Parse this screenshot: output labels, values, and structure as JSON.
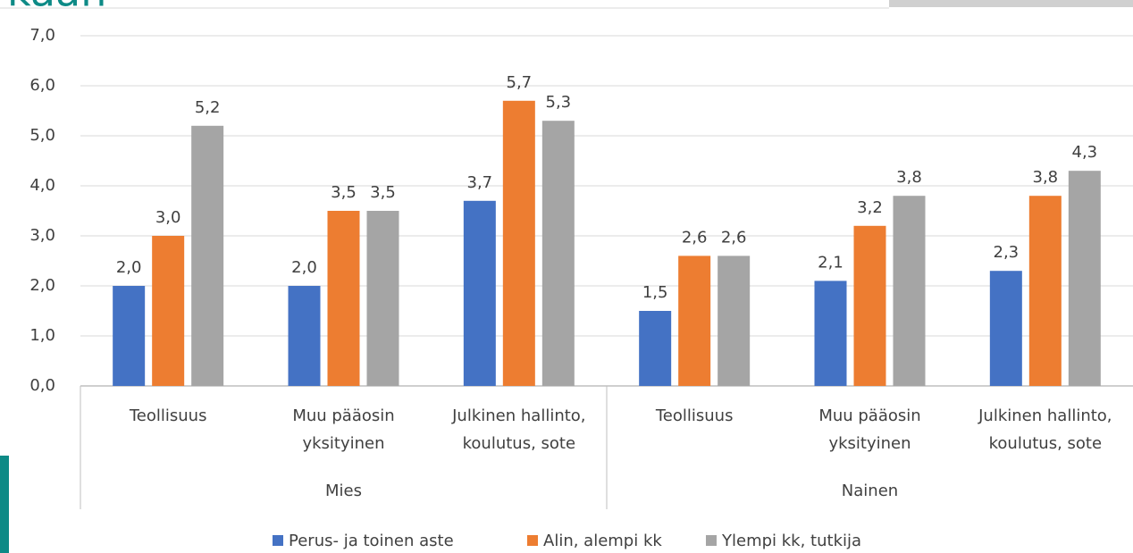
{
  "slide": {
    "title_fragment": "kaan"
  },
  "chart_data": {
    "type": "bar",
    "categories": [
      [
        "Teollisuus"
      ],
      [
        "Muu pääosin",
        "yksityinen"
      ],
      [
        "Julkinen hallinto,",
        "koulutus, sote"
      ],
      [
        "Teollisuus"
      ],
      [
        "Muu pääosin",
        "yksityinen"
      ],
      [
        "Julkinen hallinto,",
        "koulutus, sote"
      ]
    ],
    "groups": [
      {
        "name": "Mies",
        "span": 3
      },
      {
        "name": "Nainen",
        "span": 3
      }
    ],
    "series": [
      {
        "name": "Perus- ja toinen aste",
        "color": "#4472c4",
        "values": [
          2.0,
          2.0,
          3.7,
          1.5,
          2.1,
          2.3
        ],
        "value_labels": [
          "2,0",
          "2,0",
          "3,7",
          "1,5",
          "2,1",
          "2,3"
        ]
      },
      {
        "name": "Alin, alempi kk",
        "color": "#ed7d31",
        "values": [
          3.0,
          3.5,
          5.7,
          2.6,
          3.2,
          3.8
        ],
        "value_labels": [
          "3,0",
          "3,5",
          "5,7",
          "2,6",
          "3,2",
          "3,8"
        ]
      },
      {
        "name": "Ylempi kk, tutkija",
        "color": "#a5a5a5",
        "values": [
          5.2,
          3.5,
          5.3,
          2.6,
          3.8,
          4.3
        ],
        "value_labels": [
          "5,2",
          "3,5",
          "5,3",
          "2,6",
          "3,8",
          "4,3"
        ]
      }
    ],
    "ylim": [
      0,
      7
    ],
    "yticks": [
      {
        "value": 0,
        "label": "0,0"
      },
      {
        "value": 1,
        "label": "1,0"
      },
      {
        "value": 2,
        "label": "2,0"
      },
      {
        "value": 3,
        "label": "3,0"
      },
      {
        "value": 4,
        "label": "4,0"
      },
      {
        "value": 5,
        "label": "5,0"
      },
      {
        "value": 6,
        "label": "6,0"
      },
      {
        "value": 7,
        "label": "7,0"
      }
    ],
    "grid": true,
    "legend": "bottom"
  }
}
